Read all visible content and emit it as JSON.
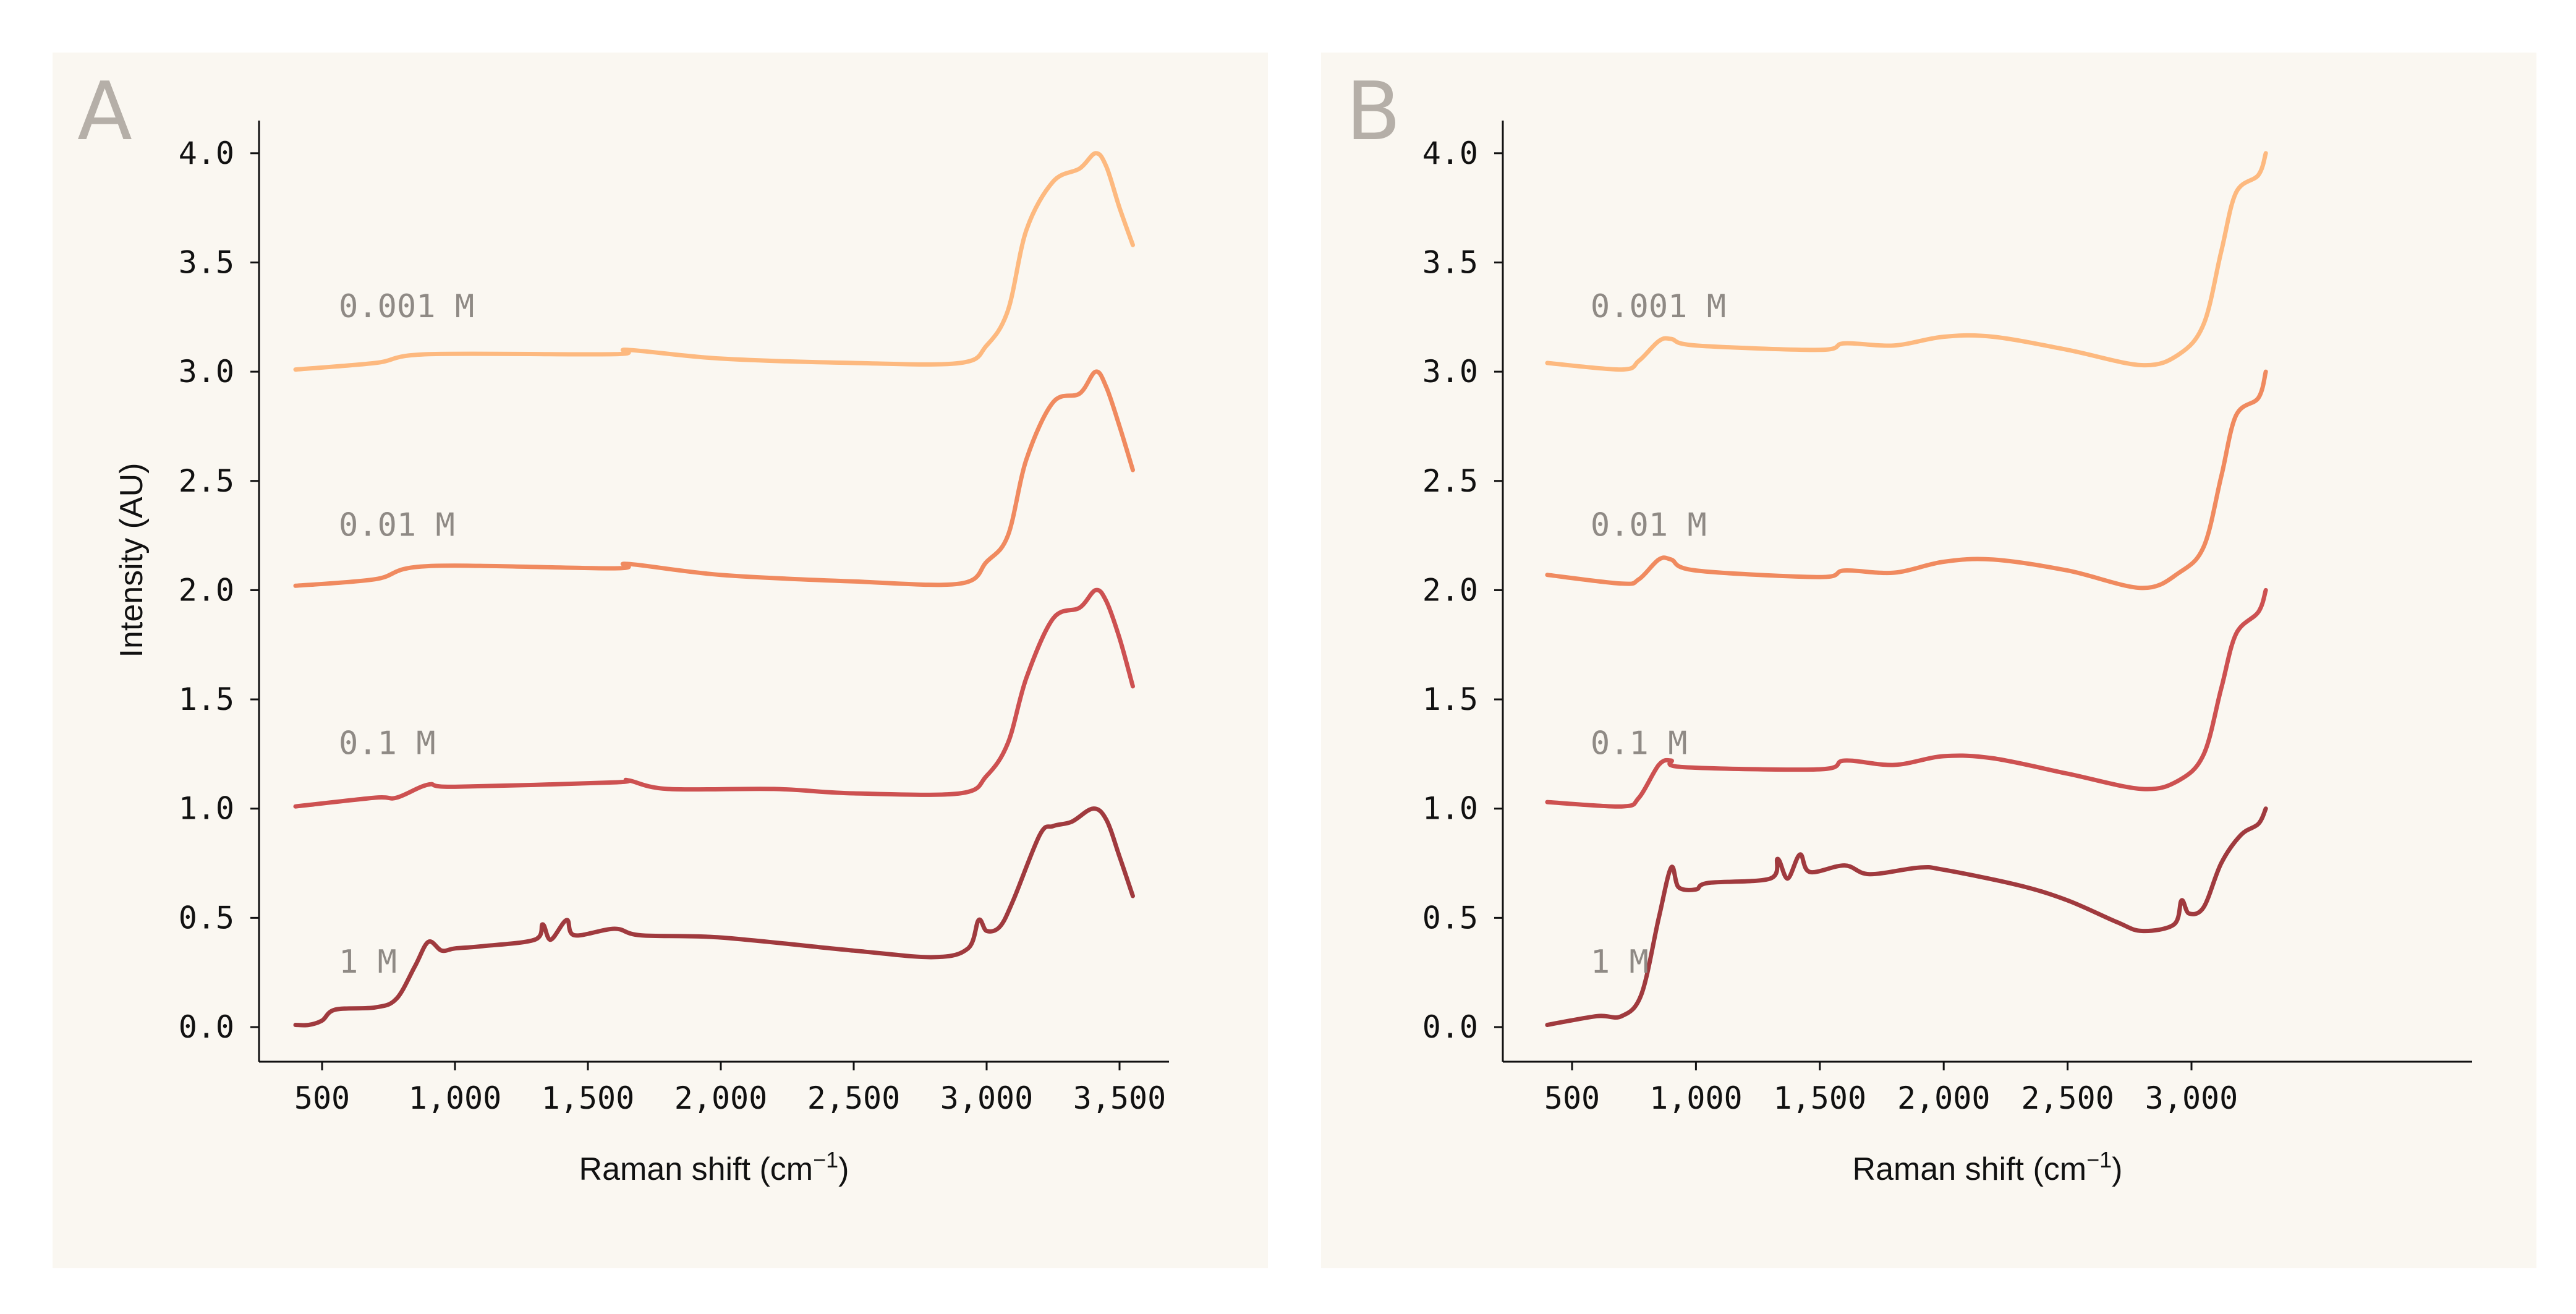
{
  "chart_data": [
    {
      "type": "line",
      "panel_label": "A",
      "xlabel": "Raman shift (cm",
      "xlabel_sup": "−1",
      "xlabel_close": ")",
      "ylabel": "Intensity (AU)",
      "xlim": [
        280,
        3630
      ],
      "ylim": [
        -0.16,
        4.2
      ],
      "xticks": [
        500,
        1000,
        1500,
        2000,
        2500,
        3000,
        3500
      ],
      "xtick_labels": [
        "500",
        "1,000",
        "1,500",
        "2,000",
        "2,500",
        "3,000",
        "3,500"
      ],
      "yticks": [
        0,
        0.5,
        1,
        1.5,
        2,
        2.5,
        3,
        3.5,
        4
      ],
      "ytick_labels": [
        "0.0",
        "0.5",
        "1.0",
        "1.5",
        "2.0",
        "2.5",
        "3.0",
        "3.5",
        "4.0"
      ],
      "grid": false,
      "series": [
        {
          "name": "1 M",
          "color": "#a03a3e",
          "points": [
            [
              400,
              0.01
            ],
            [
              450,
              0.01
            ],
            [
              500,
              0.03
            ],
            [
              550,
              0.08
            ],
            [
              700,
              0.09
            ],
            [
              780,
              0.13
            ],
            [
              850,
              0.28
            ],
            [
              900,
              0.39
            ],
            [
              950,
              0.35
            ],
            [
              1000,
              0.36
            ],
            [
              1100,
              0.37
            ],
            [
              1300,
              0.4
            ],
            [
              1330,
              0.47
            ],
            [
              1360,
              0.4
            ],
            [
              1420,
              0.49
            ],
            [
              1450,
              0.42
            ],
            [
              1600,
              0.45
            ],
            [
              1700,
              0.42
            ],
            [
              2000,
              0.41
            ],
            [
              2500,
              0.35
            ],
            [
              2800,
              0.32
            ],
            [
              2930,
              0.36
            ],
            [
              2970,
              0.49
            ],
            [
              3000,
              0.44
            ],
            [
              3050,
              0.46
            ],
            [
              3100,
              0.58
            ],
            [
              3200,
              0.88
            ],
            [
              3250,
              0.92
            ],
            [
              3320,
              0.94
            ],
            [
              3400,
              1.0
            ],
            [
              3450,
              0.95
            ],
            [
              3500,
              0.78
            ],
            [
              3550,
              0.6
            ]
          ]
        },
        {
          "name": "0.1 M",
          "color": "#cd5151",
          "points": [
            [
              400,
              1.01
            ],
            [
              700,
              1.05
            ],
            [
              780,
              1.05
            ],
            [
              900,
              1.11
            ],
            [
              1000,
              1.1
            ],
            [
              1600,
              1.12
            ],
            [
              1650,
              1.13
            ],
            [
              1800,
              1.09
            ],
            [
              2200,
              1.09
            ],
            [
              2500,
              1.07
            ],
            [
              2900,
              1.07
            ],
            [
              3000,
              1.15
            ],
            [
              3080,
              1.3
            ],
            [
              3150,
              1.6
            ],
            [
              3250,
              1.87
            ],
            [
              3350,
              1.92
            ],
            [
              3410,
              2.0
            ],
            [
              3450,
              1.95
            ],
            [
              3500,
              1.78
            ],
            [
              3550,
              1.56
            ]
          ]
        },
        {
          "name": "0.01 M",
          "color": "#f08a5f",
          "points": [
            [
              400,
              2.02
            ],
            [
              700,
              2.05
            ],
            [
              900,
              2.11
            ],
            [
              1600,
              2.1
            ],
            [
              1650,
              2.12
            ],
            [
              2000,
              2.07
            ],
            [
              2500,
              2.04
            ],
            [
              2900,
              2.03
            ],
            [
              3000,
              2.13
            ],
            [
              3080,
              2.25
            ],
            [
              3150,
              2.6
            ],
            [
              3250,
              2.86
            ],
            [
              3350,
              2.9
            ],
            [
              3410,
              3.0
            ],
            [
              3450,
              2.93
            ],
            [
              3500,
              2.75
            ],
            [
              3550,
              2.55
            ]
          ]
        },
        {
          "name": "0.001 M",
          "color": "#fdb97f",
          "points": [
            [
              400,
              3.01
            ],
            [
              700,
              3.04
            ],
            [
              900,
              3.08
            ],
            [
              1600,
              3.08
            ],
            [
              1650,
              3.1
            ],
            [
              2000,
              3.06
            ],
            [
              2500,
              3.04
            ],
            [
              2900,
              3.04
            ],
            [
              3000,
              3.12
            ],
            [
              3080,
              3.28
            ],
            [
              3150,
              3.65
            ],
            [
              3250,
              3.87
            ],
            [
              3350,
              3.93
            ],
            [
              3410,
              4.0
            ],
            [
              3450,
              3.94
            ],
            [
              3500,
              3.75
            ],
            [
              3550,
              3.58
            ]
          ]
        }
      ]
    },
    {
      "type": "line",
      "panel_label": "B",
      "xlabel": "Raman shift (cm",
      "xlabel_sup": "−1",
      "xlabel_close": ")",
      "ylabel": "",
      "xlim": [
        280,
        3420
      ],
      "ylim": [
        -0.16,
        4.2
      ],
      "xticks": [
        500,
        1000,
        1500,
        2000,
        2500,
        3000
      ],
      "xtick_labels": [
        "500",
        "1,000",
        "1,500",
        "2,000",
        "2,500",
        "3,000"
      ],
      "yticks": [
        0,
        0.5,
        1,
        1.5,
        2,
        2.5,
        3,
        3.5,
        4
      ],
      "ytick_labels": [
        "0.0",
        "0.5",
        "1.0",
        "1.5",
        "2.0",
        "2.5",
        "3.0",
        "3.5",
        "4.0"
      ],
      "grid": false,
      "series": [
        {
          "name": "1 M",
          "color": "#a03a3e",
          "points": [
            [
              400,
              0.01
            ],
            [
              600,
              0.05
            ],
            [
              700,
              0.05
            ],
            [
              780,
              0.15
            ],
            [
              850,
              0.5
            ],
            [
              900,
              0.73
            ],
            [
              930,
              0.64
            ],
            [
              1000,
              0.63
            ],
            [
              1050,
              0.66
            ],
            [
              1300,
              0.68
            ],
            [
              1330,
              0.77
            ],
            [
              1370,
              0.68
            ],
            [
              1420,
              0.79
            ],
            [
              1460,
              0.71
            ],
            [
              1600,
              0.74
            ],
            [
              1700,
              0.7
            ],
            [
              1900,
              0.73
            ],
            [
              2000,
              0.72
            ],
            [
              2300,
              0.65
            ],
            [
              2500,
              0.58
            ],
            [
              2700,
              0.48
            ],
            [
              2800,
              0.44
            ],
            [
              2930,
              0.47
            ],
            [
              2960,
              0.58
            ],
            [
              2990,
              0.52
            ],
            [
              3050,
              0.55
            ],
            [
              3120,
              0.75
            ],
            [
              3200,
              0.88
            ],
            [
              3270,
              0.93
            ],
            [
              3300,
              1.0
            ]
          ]
        },
        {
          "name": "0.1 M",
          "color": "#cd5151",
          "points": [
            [
              400,
              1.03
            ],
            [
              700,
              1.01
            ],
            [
              770,
              1.05
            ],
            [
              850,
              1.2
            ],
            [
              900,
              1.22
            ],
            [
              950,
              1.19
            ],
            [
              1500,
              1.18
            ],
            [
              1600,
              1.22
            ],
            [
              1800,
              1.2
            ],
            [
              2000,
              1.24
            ],
            [
              2200,
              1.23
            ],
            [
              2500,
              1.16
            ],
            [
              2800,
              1.09
            ],
            [
              2950,
              1.13
            ],
            [
              3050,
              1.25
            ],
            [
              3120,
              1.55
            ],
            [
              3180,
              1.8
            ],
            [
              3270,
              1.9
            ],
            [
              3300,
              2.0
            ]
          ]
        },
        {
          "name": "0.01 M",
          "color": "#f08a5f",
          "points": [
            [
              400,
              2.07
            ],
            [
              700,
              2.03
            ],
            [
              770,
              2.05
            ],
            [
              850,
              2.14
            ],
            [
              900,
              2.14
            ],
            [
              1000,
              2.09
            ],
            [
              1500,
              2.06
            ],
            [
              1600,
              2.09
            ],
            [
              1800,
              2.08
            ],
            [
              2000,
              2.13
            ],
            [
              2200,
              2.14
            ],
            [
              2500,
              2.09
            ],
            [
              2800,
              2.01
            ],
            [
              2950,
              2.08
            ],
            [
              3050,
              2.2
            ],
            [
              3120,
              2.52
            ],
            [
              3180,
              2.8
            ],
            [
              3270,
              2.88
            ],
            [
              3300,
              3.0
            ]
          ]
        },
        {
          "name": "0.001 M",
          "color": "#fdb97f",
          "points": [
            [
              400,
              3.04
            ],
            [
              700,
              3.01
            ],
            [
              770,
              3.05
            ],
            [
              850,
              3.14
            ],
            [
              900,
              3.15
            ],
            [
              1000,
              3.12
            ],
            [
              1500,
              3.1
            ],
            [
              1600,
              3.13
            ],
            [
              1800,
              3.12
            ],
            [
              2000,
              3.16
            ],
            [
              2200,
              3.16
            ],
            [
              2500,
              3.1
            ],
            [
              2800,
              3.03
            ],
            [
              2950,
              3.08
            ],
            [
              3050,
              3.22
            ],
            [
              3120,
              3.55
            ],
            [
              3180,
              3.82
            ],
            [
              3270,
              3.9
            ],
            [
              3300,
              4.0
            ]
          ]
        }
      ]
    }
  ],
  "colors": {
    "panel_background": "#faf7f1",
    "series_label": "#8f8a85",
    "panel_letter": "#b5afa8",
    "axis": "#111111"
  }
}
